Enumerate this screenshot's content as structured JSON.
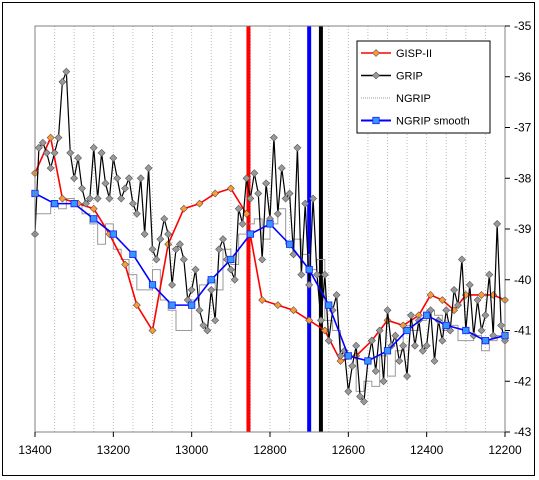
{
  "chart_data": {
    "type": "line",
    "xlim": [
      13400,
      12200
    ],
    "ylim": [
      -43,
      -35
    ],
    "x_axis_inverted": true,
    "y_axis_position": "right",
    "x_ticks": [
      13400,
      13200,
      13000,
      12800,
      12600,
      12400,
      12200
    ],
    "y_ticks": [
      -35,
      -36,
      -37,
      -38,
      -39,
      -40,
      -41,
      -42,
      -43
    ],
    "x_tick_labels": [
      "13400",
      "13200",
      "13000",
      "12800",
      "12600",
      "12400",
      "12200"
    ],
    "y_tick_labels": [
      "-35",
      "-36",
      "-37",
      "-38",
      "-39",
      "-40",
      "-41",
      "-42",
      "-43"
    ],
    "vertical_gridlines": "dotted every 50",
    "legend_position": "top-right",
    "series": [
      {
        "name": "GISP-II",
        "color": "#ff0000",
        "marker": "diamond",
        "marker_color": "#ff9933",
        "x": [
          13400,
          13360,
          13330,
          13290,
          13250,
          13210,
          13170,
          13140,
          13100,
          13060,
          13020,
          12980,
          12940,
          12900,
          12860,
          12820,
          12780,
          12740,
          12700,
          12660,
          12620,
          12580,
          12540,
          12500,
          12460,
          12420,
          12390,
          12360,
          12330,
          12300,
          12260,
          12230,
          12200
        ],
        "y": [
          -37.9,
          -37.2,
          -38.4,
          -38.5,
          -38.6,
          -39.1,
          -39.7,
          -40.5,
          -41.0,
          -39.3,
          -38.6,
          -38.5,
          -38.3,
          -38.2,
          -38.7,
          -40.4,
          -40.5,
          -40.6,
          -40.8,
          -41.0,
          -41.6,
          -41.5,
          -41.2,
          -40.8,
          -40.9,
          -40.7,
          -40.3,
          -40.4,
          -40.6,
          -40.3,
          -40.3,
          -40.3,
          -40.4
        ]
      },
      {
        "name": "GRIP",
        "color": "#000000",
        "marker": "diamond",
        "marker_color": "#999999",
        "x": [
          13400,
          13390,
          13380,
          13370,
          13360,
          13350,
          13340,
          13330,
          13320,
          13310,
          13300,
          13290,
          13280,
          13270,
          13260,
          13250,
          13240,
          13230,
          13220,
          13210,
          13200,
          13190,
          13180,
          13170,
          13160,
          13150,
          13140,
          13130,
          13120,
          13110,
          13100,
          13090,
          13080,
          13070,
          13060,
          13050,
          13040,
          13030,
          13020,
          13010,
          13000,
          12990,
          12980,
          12970,
          12960,
          12950,
          12940,
          12930,
          12920,
          12910,
          12900,
          12890,
          12880,
          12870,
          12860,
          12850,
          12840,
          12830,
          12820,
          12810,
          12800,
          12790,
          12780,
          12770,
          12760,
          12750,
          12740,
          12730,
          12720,
          12710,
          12700,
          12690,
          12680,
          12670,
          12660,
          12650,
          12640,
          12630,
          12620,
          12610,
          12600,
          12590,
          12580,
          12570,
          12560,
          12550,
          12540,
          12530,
          12520,
          12510,
          12500,
          12490,
          12480,
          12470,
          12460,
          12450,
          12440,
          12430,
          12420,
          12410,
          12400,
          12390,
          12380,
          12370,
          12360,
          12350,
          12340,
          12330,
          12320,
          12310,
          12300,
          12290,
          12280,
          12270,
          12260,
          12250,
          12240,
          12230,
          12220,
          12210,
          12200
        ],
        "y": [
          -39.1,
          -37.4,
          -37.3,
          -37.5,
          -37.8,
          -37.5,
          -37.2,
          -36.1,
          -35.9,
          -37.5,
          -38.0,
          -37.6,
          -38.2,
          -38.5,
          -38.4,
          -37.4,
          -38.4,
          -37.5,
          -38.1,
          -38.4,
          -37.6,
          -38.0,
          -38.4,
          -38.2,
          -38.0,
          -38.5,
          -38.7,
          -38.0,
          -39.1,
          -37.8,
          -39.4,
          -39.6,
          -39.2,
          -38.8,
          -39.1,
          -40.1,
          -39.4,
          -39.3,
          -39.6,
          -40.4,
          -40.2,
          -39.8,
          -40.6,
          -40.9,
          -41.0,
          -40.2,
          -40.8,
          -39.4,
          -39.2,
          -39.6,
          -39.8,
          -40.0,
          -38.6,
          -38.9,
          -38.0,
          -38.4,
          -37.9,
          -38.3,
          -39.6,
          -38.1,
          -38.8,
          -37.2,
          -38.7,
          -37.8,
          -38.4,
          -38.3,
          -39.5,
          -37.4,
          -39.9,
          -38.5,
          -40.1,
          -38.4,
          -39.9,
          -40.8,
          -39.9,
          -41.2,
          -40.6,
          -40.3,
          -41.5,
          -41.4,
          -42.2,
          -41.7,
          -41.3,
          -42.3,
          -42.4,
          -41.6,
          -41.2,
          -41.8,
          -41.0,
          -42.0,
          -40.6,
          -41.3,
          -41.1,
          -41.6,
          -41.3,
          -41.9,
          -40.7,
          -41.3,
          -40.8,
          -41.4,
          -41.3,
          -40.6,
          -41.6,
          -40.8,
          -41.2,
          -40.6,
          -41.0,
          -40.2,
          -40.5,
          -39.6,
          -41.0,
          -40.1,
          -41.1,
          -40.4,
          -41.0,
          -40.7,
          -39.9,
          -41.1,
          -38.9,
          -40.9,
          -41.2
        ]
      },
      {
        "name": "NGRIP",
        "color": "#999999",
        "style": "step",
        "x": [
          13400,
          13380,
          13360,
          13340,
          13320,
          13300,
          13280,
          13260,
          13240,
          13220,
          13200,
          13180,
          13160,
          13140,
          13120,
          13100,
          13080,
          13060,
          13040,
          13020,
          13000,
          12980,
          12960,
          12940,
          12920,
          12900,
          12880,
          12860,
          12840,
          12820,
          12800,
          12780,
          12760,
          12740,
          12720,
          12700,
          12680,
          12660,
          12640,
          12620,
          12600,
          12580,
          12560,
          12540,
          12520,
          12500,
          12480,
          12460,
          12440,
          12420,
          12400,
          12380,
          12360,
          12340,
          12320,
          12300,
          12280,
          12260,
          12240,
          12220,
          12200
        ],
        "y": [
          -38.7,
          -38.7,
          -38.5,
          -38.6,
          -38.4,
          -38.5,
          -38.7,
          -38.9,
          -39.3,
          -38.9,
          -39.4,
          -39.6,
          -39.9,
          -40.2,
          -40.2,
          -39.8,
          -40.4,
          -40.6,
          -41.0,
          -41.0,
          -40.4,
          -40.1,
          -40.0,
          -40.2,
          -39.4,
          -39.7,
          -39.1,
          -38.9,
          -38.8,
          -39.2,
          -38.9,
          -38.6,
          -39.3,
          -39.2,
          -39.5,
          -39.8,
          -39.6,
          -40.8,
          -41.0,
          -41.5,
          -41.5,
          -42.2,
          -42.0,
          -42.1,
          -41.5,
          -41.9,
          -41.4,
          -40.9,
          -41.0,
          -40.8,
          -40.6,
          -40.7,
          -41.0,
          -40.9,
          -41.2,
          -41.2,
          -41.1,
          -41.4,
          -41.2,
          -41.1,
          -41.3
        ]
      },
      {
        "name": "NGRIP smooth",
        "color": "#0000ff",
        "marker": "square",
        "marker_color": "#3399ff",
        "x": [
          13400,
          13350,
          13300,
          13250,
          13200,
          13150,
          13100,
          13050,
          13000,
          12950,
          12900,
          12850,
          12800,
          12750,
          12700,
          12650,
          12600,
          12550,
          12500,
          12450,
          12400,
          12350,
          12300,
          12250,
          12200
        ],
        "y": [
          -38.3,
          -38.5,
          -38.5,
          -38.8,
          -39.1,
          -39.5,
          -40.1,
          -40.5,
          -40.5,
          -40.0,
          -39.6,
          -39.1,
          -38.9,
          -39.3,
          -39.8,
          -40.5,
          -41.5,
          -41.6,
          -41.4,
          -41.0,
          -40.7,
          -40.9,
          -41.0,
          -41.2,
          -41.1
        ]
      }
    ],
    "reference_lines": [
      {
        "x": 12855,
        "color": "#ff0000"
      },
      {
        "x": 12700,
        "color": "#0000ff"
      },
      {
        "x": 12670,
        "color": "#000000"
      }
    ]
  }
}
